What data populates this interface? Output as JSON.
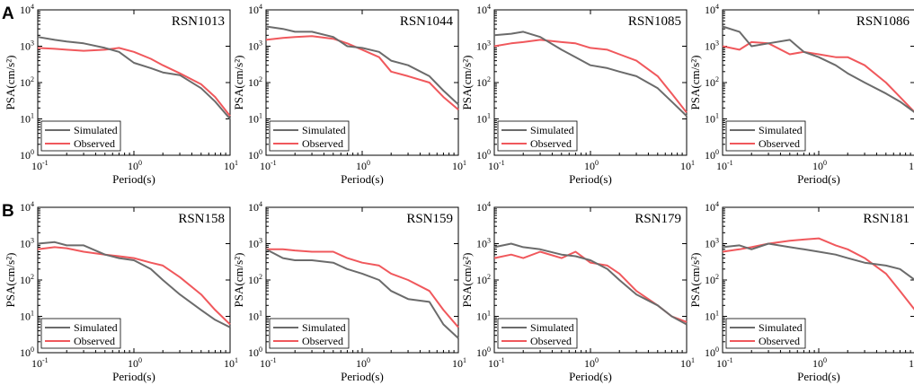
{
  "panel_labels": [
    "A",
    "B"
  ],
  "colors": {
    "simulated": "#6b6b6b",
    "observed": "#f0585c"
  },
  "chart_data": [
    {
      "type": "line",
      "title": "RSN1013",
      "xlabel": "Period(s)",
      "ylabel": "PSA(cm/s²)",
      "xscale": "log",
      "yscale": "log",
      "xlim": [
        0.1,
        10
      ],
      "ylim": [
        1,
        10000
      ],
      "legend": "lower-left",
      "series": [
        {
          "name": "Simulated",
          "x": [
            0.1,
            0.15,
            0.2,
            0.3,
            0.5,
            0.7,
            1.0,
            1.5,
            2,
            3,
            5,
            7,
            10
          ],
          "y": [
            1800,
            1500,
            1350,
            1200,
            900,
            700,
            350,
            250,
            190,
            160,
            70,
            30,
            10
          ]
        },
        {
          "name": "Observed",
          "x": [
            0.1,
            0.15,
            0.2,
            0.3,
            0.5,
            0.7,
            1.0,
            1.5,
            2,
            3,
            5,
            7,
            10
          ],
          "y": [
            900,
            850,
            800,
            750,
            800,
            900,
            700,
            450,
            300,
            180,
            90,
            40,
            12
          ]
        }
      ]
    },
    {
      "type": "line",
      "title": "RSN1044",
      "xlabel": "Period(s)",
      "ylabel": "PSA(cm/s²)",
      "xscale": "log",
      "yscale": "log",
      "xlim": [
        0.1,
        10
      ],
      "ylim": [
        1,
        10000
      ],
      "legend": "lower-left",
      "series": [
        {
          "name": "Simulated",
          "x": [
            0.1,
            0.15,
            0.2,
            0.3,
            0.5,
            0.7,
            1.0,
            1.5,
            2,
            3,
            5,
            7,
            10
          ],
          "y": [
            3500,
            3000,
            2500,
            2500,
            1800,
            1000,
            900,
            700,
            400,
            300,
            150,
            60,
            25
          ]
        },
        {
          "name": "Observed",
          "x": [
            0.1,
            0.15,
            0.2,
            0.3,
            0.5,
            0.7,
            1.0,
            1.5,
            2,
            3,
            5,
            7,
            10
          ],
          "y": [
            1500,
            1700,
            1800,
            1900,
            1600,
            1200,
            800,
            500,
            200,
            150,
            100,
            40,
            18
          ]
        }
      ]
    },
    {
      "type": "line",
      "title": "RSN1085",
      "xlabel": "Period(s)",
      "ylabel": "PSA(cm/s²)",
      "xscale": "log",
      "yscale": "log",
      "xlim": [
        0.1,
        10
      ],
      "ylim": [
        1,
        10000
      ],
      "legend": "lower-left",
      "series": [
        {
          "name": "Simulated",
          "x": [
            0.1,
            0.15,
            0.2,
            0.3,
            0.5,
            0.7,
            1.0,
            1.5,
            2,
            3,
            5,
            7,
            10
          ],
          "y": [
            2000,
            2200,
            2500,
            1800,
            800,
            500,
            300,
            250,
            200,
            150,
            70,
            30,
            12
          ]
        },
        {
          "name": "Observed",
          "x": [
            0.1,
            0.15,
            0.2,
            0.3,
            0.5,
            0.7,
            1.0,
            1.5,
            2,
            3,
            5,
            7,
            10
          ],
          "y": [
            1000,
            1200,
            1300,
            1500,
            1300,
            1200,
            900,
            800,
            600,
            400,
            150,
            50,
            15
          ]
        }
      ]
    },
    {
      "type": "line",
      "title": "RSN1086",
      "xlabel": "Period(s)",
      "ylabel": "PSA(cm/s²)",
      "xscale": "log",
      "yscale": "log",
      "xlim": [
        0.1,
        10
      ],
      "ylim": [
        1,
        10000
      ],
      "legend": "lower-left",
      "series": [
        {
          "name": "Simulated",
          "x": [
            0.1,
            0.15,
            0.2,
            0.3,
            0.5,
            0.7,
            1.0,
            1.5,
            2,
            3,
            5,
            7,
            10
          ],
          "y": [
            3500,
            2500,
            1000,
            1200,
            1500,
            700,
            500,
            300,
            180,
            100,
            50,
            30,
            15
          ]
        },
        {
          "name": "Observed",
          "x": [
            0.1,
            0.15,
            0.2,
            0.3,
            0.5,
            0.7,
            1.0,
            1.5,
            2,
            3,
            5,
            7,
            10
          ],
          "y": [
            1000,
            800,
            1300,
            1200,
            600,
            700,
            600,
            500,
            500,
            300,
            100,
            40,
            15
          ]
        }
      ]
    },
    {
      "type": "line",
      "title": "RSN158",
      "xlabel": "Period(s)",
      "ylabel": "PSA(cm/s²)",
      "xscale": "log",
      "yscale": "log",
      "xlim": [
        0.1,
        10
      ],
      "ylim": [
        1,
        10000
      ],
      "legend": "lower-left",
      "series": [
        {
          "name": "Simulated",
          "x": [
            0.1,
            0.15,
            0.2,
            0.3,
            0.5,
            0.7,
            1.0,
            1.5,
            2,
            3,
            5,
            7,
            10
          ],
          "y": [
            1000,
            1100,
            900,
            900,
            500,
            400,
            350,
            200,
            100,
            40,
            15,
            8,
            5
          ]
        },
        {
          "name": "Observed",
          "x": [
            0.1,
            0.15,
            0.2,
            0.3,
            0.5,
            0.7,
            1.0,
            1.5,
            2,
            3,
            5,
            7,
            10
          ],
          "y": [
            700,
            800,
            750,
            600,
            500,
            450,
            400,
            300,
            250,
            120,
            40,
            15,
            6
          ]
        }
      ]
    },
    {
      "type": "line",
      "title": "RSN159",
      "xlabel": "Period(s)",
      "ylabel": "PSA(cm/s²)",
      "xscale": "log",
      "yscale": "log",
      "xlim": [
        0.1,
        10
      ],
      "ylim": [
        1,
        10000
      ],
      "legend": "lower-left",
      "series": [
        {
          "name": "Simulated",
          "x": [
            0.1,
            0.15,
            0.2,
            0.3,
            0.5,
            0.7,
            1.0,
            1.5,
            2,
            3,
            5,
            7,
            10
          ],
          "y": [
            700,
            400,
            350,
            350,
            300,
            200,
            150,
            100,
            50,
            30,
            25,
            6,
            2.5
          ]
        },
        {
          "name": "Observed",
          "x": [
            0.1,
            0.15,
            0.2,
            0.3,
            0.5,
            0.7,
            1.0,
            1.5,
            2,
            3,
            5,
            7,
            10
          ],
          "y": [
            700,
            700,
            650,
            600,
            600,
            400,
            300,
            250,
            150,
            100,
            50,
            15,
            5
          ]
        }
      ]
    },
    {
      "type": "line",
      "title": "RSN179",
      "xlabel": "Period(s)",
      "ylabel": "PSA(cm/s²)",
      "xscale": "log",
      "yscale": "log",
      "xlim": [
        0.1,
        10
      ],
      "ylim": [
        1,
        10000
      ],
      "legend": "lower-left",
      "series": [
        {
          "name": "Simulated",
          "x": [
            0.1,
            0.15,
            0.2,
            0.3,
            0.5,
            0.7,
            1.0,
            1.5,
            2,
            3,
            5,
            7,
            10
          ],
          "y": [
            800,
            1000,
            800,
            700,
            500,
            450,
            350,
            200,
            100,
            40,
            20,
            10,
            6
          ]
        },
        {
          "name": "Observed",
          "x": [
            0.1,
            0.15,
            0.2,
            0.3,
            0.5,
            0.7,
            1.0,
            1.5,
            2,
            3,
            5,
            7,
            10
          ],
          "y": [
            400,
            500,
            400,
            600,
            400,
            600,
            300,
            250,
            150,
            50,
            20,
            10,
            7
          ]
        }
      ]
    },
    {
      "type": "line",
      "title": "RSN181",
      "xlabel": "Period(s)",
      "ylabel": "PSA(cm/s²)",
      "xscale": "log",
      "yscale": "log",
      "xlim": [
        0.1,
        10
      ],
      "ylim": [
        1,
        10000
      ],
      "legend": "lower-left",
      "series": [
        {
          "name": "Simulated",
          "x": [
            0.1,
            0.15,
            0.2,
            0.3,
            0.5,
            0.7,
            1.0,
            1.5,
            2,
            3,
            5,
            7,
            10
          ],
          "y": [
            800,
            900,
            700,
            1000,
            800,
            700,
            600,
            500,
            400,
            300,
            250,
            200,
            100
          ]
        },
        {
          "name": "Observed",
          "x": [
            0.1,
            0.15,
            0.2,
            0.3,
            0.5,
            0.7,
            1.0,
            1.5,
            2,
            3,
            5,
            7,
            10
          ],
          "y": [
            600,
            700,
            800,
            1000,
            1200,
            1300,
            1400,
            900,
            700,
            400,
            150,
            50,
            15
          ]
        }
      ]
    }
  ]
}
